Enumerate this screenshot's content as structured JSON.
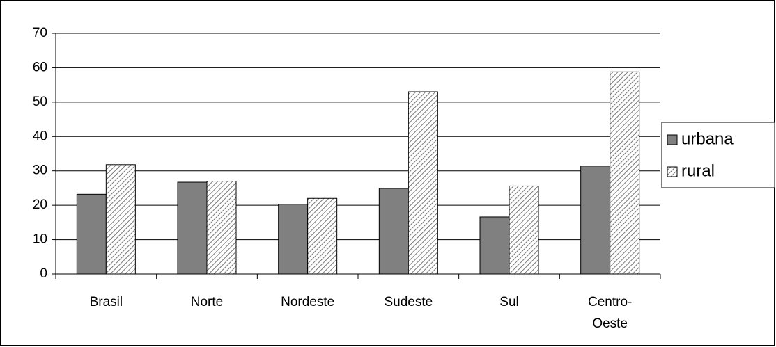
{
  "chart_data": {
    "type": "bar",
    "categories": [
      "Brasil",
      "Norte",
      "Nordeste",
      "Sudeste",
      "Sul",
      "Centro-Oeste"
    ],
    "series": [
      {
        "name": "urbana",
        "color": "#808080",
        "values": [
          23.2,
          26.7,
          20.3,
          24.9,
          16.6,
          31.4
        ]
      },
      {
        "name": "rural",
        "color": "#ffffff",
        "pattern": "diagonal-hatch",
        "values": [
          31.8,
          27.0,
          22.0,
          53.0,
          25.6,
          58.8
        ]
      }
    ],
    "ylim": [
      0,
      70
    ],
    "yticks": [
      0,
      10,
      20,
      30,
      40,
      50,
      60,
      70
    ],
    "grid": true,
    "legend": "right"
  }
}
